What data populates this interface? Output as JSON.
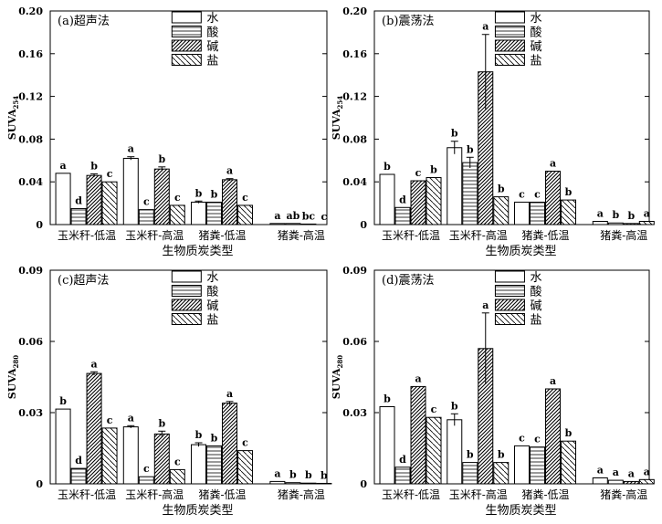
{
  "page": {
    "legend_labels": [
      "水",
      "酸",
      "碱",
      "盐"
    ],
    "xlabel": "生物质炭类型"
  },
  "chart_data": [
    {
      "type": "bar",
      "panel": "(a)超声法",
      "ylabel_main": "SUVA",
      "ylabel_sub": "254",
      "xlabel": "生物质炭类型",
      "yticks": [
        "0",
        "0.04",
        "0.08",
        "0.12",
        "0.16",
        "0.20"
      ],
      "ylim": [
        0,
        0.2
      ],
      "categories": [
        "玉米秆-低温",
        "玉米秆-高温",
        "猪粪-低温",
        "猪粪-高温"
      ],
      "legend": {
        "position": "top",
        "labels": [
          "水",
          "酸",
          "碱",
          "盐"
        ]
      },
      "series": [
        {
          "name": "水",
          "values": [
            0.048,
            0.062,
            0.021,
            0.001
          ],
          "errors": [
            0.0,
            0.0015,
            0.001,
            0.0
          ],
          "letters": [
            "a",
            "a",
            "b",
            "a"
          ]
        },
        {
          "name": "酸",
          "values": [
            0.015,
            0.014,
            0.021,
            0.001
          ],
          "errors": [
            0.0,
            0.0,
            0.0,
            0.0
          ],
          "letters": [
            "d",
            "c",
            "b",
            "ab"
          ]
        },
        {
          "name": "碱",
          "values": [
            0.046,
            0.052,
            0.042,
            0.0005
          ],
          "errors": [
            0.0015,
            0.002,
            0.001,
            0.0
          ],
          "letters": [
            "b",
            "b",
            "a",
            "bc"
          ]
        },
        {
          "name": "盐",
          "values": [
            0.04,
            0.018,
            0.018,
            0.0
          ],
          "errors": [
            0.0,
            0.0,
            0.0,
            0.0
          ],
          "letters": [
            "c",
            "c",
            "c",
            "c"
          ]
        }
      ]
    },
    {
      "type": "bar",
      "panel": "(b)震荡法",
      "ylabel_main": "SUVA",
      "ylabel_sub": "254",
      "xlabel": "生物质炭类型",
      "yticks": [
        "0",
        "0.04",
        "0.08",
        "0.12",
        "0.16",
        "0.20"
      ],
      "ylim": [
        0,
        0.2
      ],
      "categories": [
        "玉米秆-低温",
        "玉米秆-高温",
        "猪粪-低温",
        "猪粪-高温"
      ],
      "legend": {
        "position": "top",
        "labels": [
          "水",
          "酸",
          "碱",
          "盐"
        ]
      },
      "series": [
        {
          "name": "水",
          "values": [
            0.047,
            0.072,
            0.021,
            0.003
          ],
          "errors": [
            0.0,
            0.006,
            0.0,
            0.0
          ],
          "letters": [
            "b",
            "b",
            "c",
            "a"
          ]
        },
        {
          "name": "酸",
          "values": [
            0.016,
            0.058,
            0.021,
            0.0015
          ],
          "errors": [
            0.0,
            0.005,
            0.0,
            0.0
          ],
          "letters": [
            "d",
            "b",
            "c",
            "b"
          ]
        },
        {
          "name": "碱",
          "values": [
            0.041,
            0.143,
            0.05,
            0.001
          ],
          "errors": [
            0.0,
            0.035,
            0.0,
            0.0
          ],
          "letters": [
            "c",
            "a",
            "a",
            "b"
          ]
        },
        {
          "name": "盐",
          "values": [
            0.044,
            0.026,
            0.023,
            0.003
          ],
          "errors": [
            0.0,
            0.0,
            0.0,
            0.0
          ],
          "letters": [
            "b",
            "b",
            "b",
            "a"
          ]
        }
      ]
    },
    {
      "type": "bar",
      "panel": "(c)超声法",
      "ylabel_main": "SUVA",
      "ylabel_sub": "280",
      "xlabel": "生物质炭类型",
      "yticks": [
        "0",
        "0.03",
        "0.06",
        "0.09"
      ],
      "ylim": [
        0,
        0.09
      ],
      "categories": [
        "玉米秆-低温",
        "玉米秆-高温",
        "猪粪-低温",
        "猪粪-高温"
      ],
      "legend": {
        "position": "top",
        "labels": [
          "水",
          "酸",
          "碱",
          "盐"
        ]
      },
      "series": [
        {
          "name": "水",
          "values": [
            0.0315,
            0.024,
            0.0165,
            0.001
          ],
          "errors": [
            0.0,
            0.0005,
            0.0008,
            0.0
          ],
          "letters": [
            "b",
            "a",
            "b",
            "a"
          ]
        },
        {
          "name": "酸",
          "values": [
            0.0065,
            0.003,
            0.016,
            0.0005
          ],
          "errors": [
            0.0,
            0.0,
            0.0,
            0.0
          ],
          "letters": [
            "d",
            "c",
            "b",
            "b"
          ]
        },
        {
          "name": "碱",
          "values": [
            0.0465,
            0.021,
            0.034,
            0.0003
          ],
          "errors": [
            0.0007,
            0.0012,
            0.0007,
            0.0
          ],
          "letters": [
            "a",
            "b",
            "a",
            "b"
          ]
        },
        {
          "name": "盐",
          "values": [
            0.0235,
            0.006,
            0.014,
            0.0002
          ],
          "errors": [
            0.0,
            0.0,
            0.0,
            0.0
          ],
          "letters": [
            "c",
            "c",
            "c",
            "b"
          ]
        }
      ]
    },
    {
      "type": "bar",
      "panel": "(d)震荡法",
      "ylabel_main": "SUVA",
      "ylabel_sub": "280",
      "xlabel": "生物质炭类型",
      "yticks": [
        "0",
        "0.03",
        "0.06",
        "0.09"
      ],
      "ylim": [
        0,
        0.09
      ],
      "categories": [
        "玉米秆-低温",
        "玉米秆-高温",
        "猪粪-低温",
        "猪粪-高温"
      ],
      "legend": {
        "position": "top",
        "labels": [
          "水",
          "酸",
          "碱",
          "盐"
        ]
      },
      "series": [
        {
          "name": "水",
          "values": [
            0.0325,
            0.027,
            0.016,
            0.0025
          ],
          "errors": [
            0.0,
            0.0025,
            0.0,
            0.0
          ],
          "letters": [
            "b",
            "b",
            "c",
            "a"
          ]
        },
        {
          "name": "酸",
          "values": [
            0.007,
            0.009,
            0.0155,
            0.0015
          ],
          "errors": [
            0.0,
            0.0,
            0.0,
            0.0
          ],
          "letters": [
            "d",
            "b",
            "c",
            "a"
          ]
        },
        {
          "name": "碱",
          "values": [
            0.041,
            0.057,
            0.04,
            0.001
          ],
          "errors": [
            0.0,
            0.015,
            0.0,
            0.0
          ],
          "letters": [
            "a",
            "a",
            "a",
            "a"
          ]
        },
        {
          "name": "盐",
          "values": [
            0.028,
            0.009,
            0.018,
            0.0018
          ],
          "errors": [
            0.0,
            0.0,
            0.0,
            0.0
          ],
          "letters": [
            "c",
            "b",
            "b",
            "a"
          ]
        }
      ]
    }
  ]
}
